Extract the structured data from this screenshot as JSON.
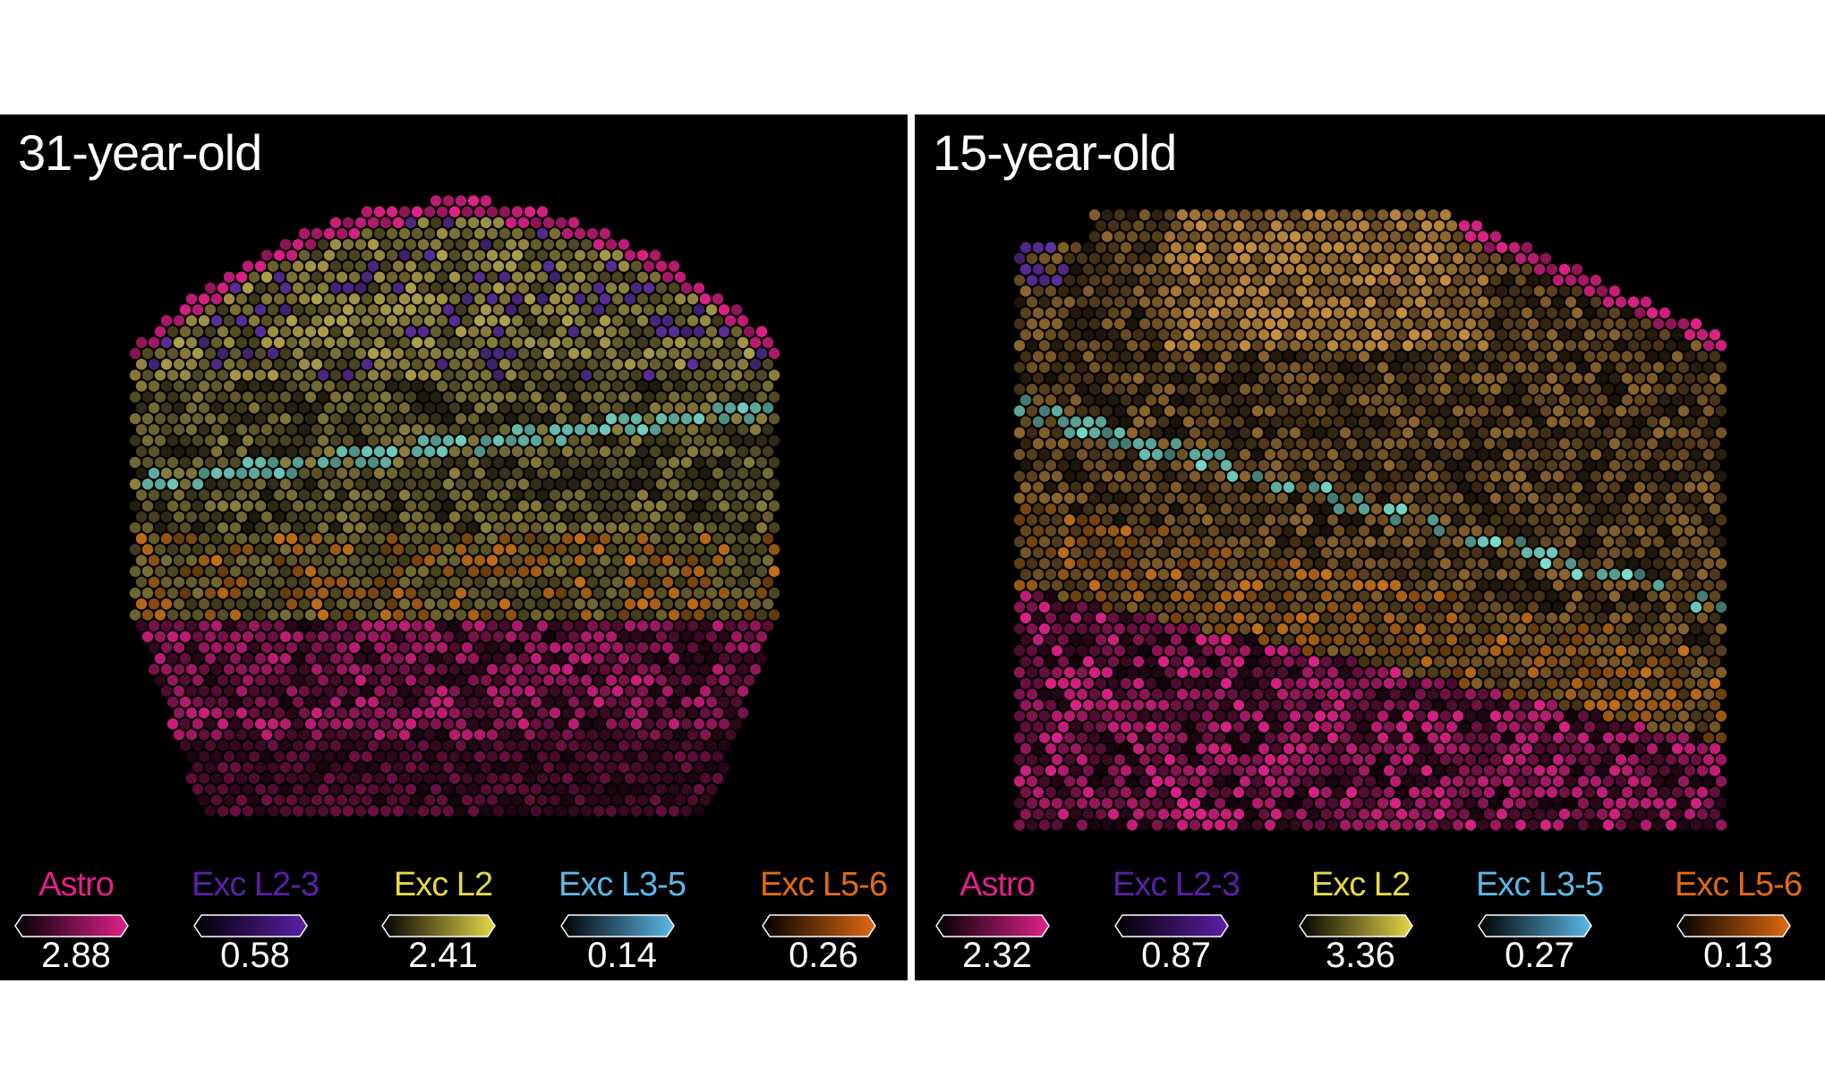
{
  "panels": [
    {
      "title": "31-year-old",
      "legend": [
        {
          "label": "Astro",
          "value": "2.88",
          "color": "#e0218a"
        },
        {
          "label": "Exc L2-3",
          "value": "0.58",
          "color": "#5b1fa8"
        },
        {
          "label": "Exc L2",
          "value": "2.41",
          "color": "#e6d84a"
        },
        {
          "label": "Exc L3-5",
          "value": "0.14",
          "color": "#5bb8e8"
        },
        {
          "label": "Exc L5-6",
          "value": "0.26",
          "color": "#e06a10"
        }
      ]
    },
    {
      "title": "15-year-old",
      "legend": [
        {
          "label": "Astro",
          "value": "2.32",
          "color": "#e0218a"
        },
        {
          "label": "Exc L2-3",
          "value": "0.87",
          "color": "#5b1fa8"
        },
        {
          "label": "Exc L2",
          "value": "3.36",
          "color": "#e6d84a"
        },
        {
          "label": "Exc L3-5",
          "value": "0.27",
          "color": "#5bb8e8"
        },
        {
          "label": "Exc L5-6",
          "value": "0.13",
          "color": "#e06a10"
        }
      ]
    }
  ]
}
